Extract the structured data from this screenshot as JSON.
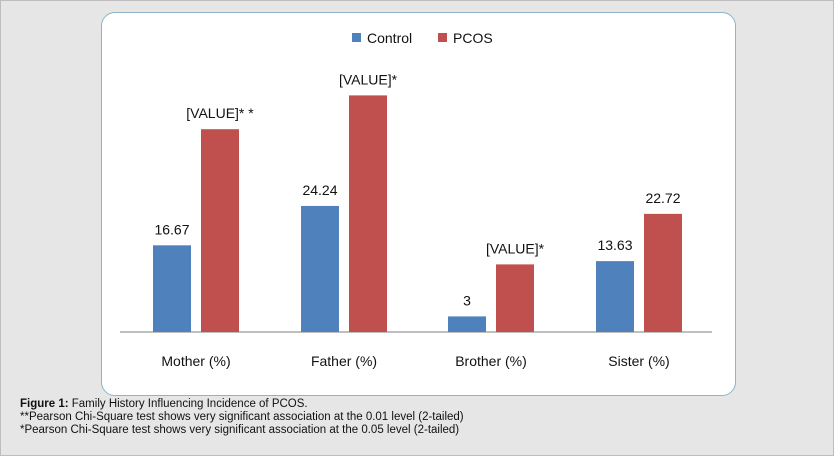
{
  "chart_data": {
    "type": "bar",
    "categories": [
      "Mother (%)",
      "Father (%)",
      "Brother (%)",
      "Sister (%)"
    ],
    "series": [
      {
        "name": "Control",
        "color": "#4f81bd",
        "values": [
          16.67,
          24.24,
          3,
          13.63
        ],
        "labels": [
          "16.67",
          "24.24",
          "3",
          "13.63"
        ]
      },
      {
        "name": "PCOS",
        "color": "#c0504d",
        "values": [
          39,
          45.5,
          13,
          22.72
        ],
        "labels": [
          "[VALUE]* *",
          "[VALUE]*",
          "[VALUE]*",
          "22.72"
        ]
      }
    ],
    "ylim": [
      0,
      50
    ],
    "title": "",
    "xlabel": "",
    "ylabel": "",
    "legend": "top-center",
    "grid": false
  },
  "caption": {
    "figure_label": "Figure 1:",
    "figure_text": " Family History Influencing Incidence of PCOS.",
    "note1": "**Pearson Chi-Square test shows very significant association at the 0.01 level (2-tailed)",
    "note2": "*Pearson Chi-Square test shows very significant association at the 0.05 level (2-tailed)"
  }
}
